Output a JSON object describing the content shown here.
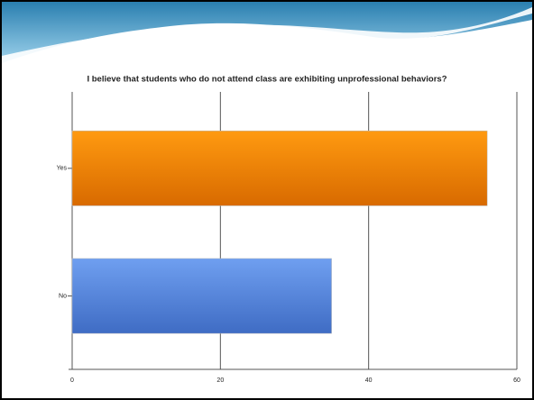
{
  "chart_data": {
    "type": "barh",
    "title": "I believe that students who do not attend class are exhibiting unprofessional behaviors?",
    "categories": [
      "Yes",
      "No"
    ],
    "values": [
      56,
      35
    ],
    "colors": [
      "#f28a00",
      "#5f8fe3"
    ],
    "xlim": [
      0,
      60
    ],
    "xticks": [
      0,
      20,
      40,
      60
    ],
    "grid": true
  }
}
